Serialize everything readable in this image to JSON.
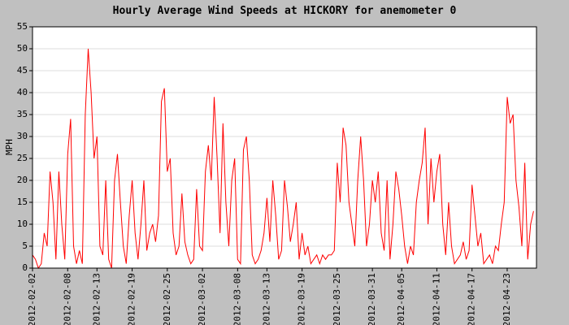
{
  "chart_data": {
    "type": "line",
    "title": "Hourly Average Wind Speeds at HICKORY for anemometer 0",
    "y_label": "MPH",
    "categories": [
      "2012-02-02",
      null,
      null,
      null,
      null,
      null,
      null,
      null,
      null,
      null,
      null,
      null,
      "2012-02-08",
      null,
      null,
      null,
      null,
      null,
      null,
      null,
      null,
      null,
      "2012-02-13",
      null,
      null,
      null,
      null,
      null,
      null,
      null,
      null,
      null,
      null,
      null,
      "2012-02-19",
      null,
      null,
      null,
      null,
      null,
      null,
      null,
      null,
      null,
      null,
      null,
      "2012-02-25",
      null,
      null,
      null,
      null,
      null,
      null,
      null,
      null,
      null,
      null,
      null,
      "2012-03-02",
      null,
      null,
      null,
      null,
      null,
      null,
      null,
      null,
      null,
      null,
      null,
      "2012-03-08",
      null,
      null,
      null,
      null,
      null,
      null,
      null,
      null,
      null,
      "2012-03-13",
      null,
      null,
      null,
      null,
      null,
      null,
      null,
      null,
      null,
      null,
      null,
      "2012-03-19",
      null,
      null,
      null,
      null,
      null,
      null,
      null,
      null,
      null,
      null,
      null,
      "2012-03-25",
      null,
      null,
      null,
      null,
      null,
      null,
      null,
      null,
      null,
      null,
      null,
      "2012-03-31",
      null,
      null,
      null,
      null,
      null,
      null,
      null,
      null,
      null,
      "2012-04-05",
      null,
      null,
      null,
      null,
      null,
      null,
      null,
      null,
      null,
      null,
      null,
      "2012-04-11",
      null,
      null,
      null,
      null,
      null,
      null,
      null,
      null,
      null,
      null,
      null,
      "2012-04-17",
      null,
      null,
      null,
      null,
      null,
      null,
      null,
      null,
      null,
      null,
      null,
      "2012-04-23",
      null,
      null,
      null,
      null,
      null,
      null,
      null,
      null,
      null
    ],
    "series": [
      {
        "color": "#ff0000",
        "values": [
          3,
          2,
          0,
          1,
          8,
          5,
          22,
          15,
          2,
          22,
          10,
          2,
          26,
          34,
          5,
          1,
          4,
          1,
          35,
          50,
          40,
          25,
          30,
          5,
          3,
          20,
          2,
          0,
          20,
          26,
          15,
          5,
          1,
          12,
          20,
          8,
          2,
          10,
          20,
          4,
          8,
          10,
          6,
          12,
          38,
          41,
          22,
          25,
          8,
          3,
          5,
          17,
          6,
          3,
          1,
          2,
          18,
          5,
          4,
          22,
          28,
          20,
          39,
          25,
          8,
          33,
          15,
          5,
          20,
          25,
          2,
          1,
          27,
          30,
          20,
          3,
          1,
          2,
          4,
          8,
          16,
          6,
          20,
          12,
          2,
          4,
          20,
          14,
          6,
          10,
          15,
          2,
          8,
          3,
          5,
          1,
          2,
          3,
          1,
          3,
          2,
          3,
          3,
          4,
          24,
          15,
          32,
          28,
          15,
          10,
          5,
          20,
          30,
          20,
          5,
          10,
          20,
          15,
          22,
          8,
          4,
          20,
          2,
          10,
          22,
          18,
          12,
          5,
          1,
          5,
          3,
          15,
          20,
          24,
          32,
          10,
          25,
          15,
          22,
          26,
          10,
          3,
          15,
          5,
          1,
          2,
          3,
          6,
          2,
          4,
          19,
          12,
          5,
          8,
          1,
          2,
          3,
          1,
          5,
          4,
          10,
          15,
          39,
          33,
          35,
          20,
          14,
          5,
          24,
          2,
          10,
          13
        ]
      }
    ],
    "ylim": [
      0,
      55
    ],
    "yticks": [
      0,
      5,
      10,
      15,
      20,
      25,
      30,
      35,
      40,
      45,
      50,
      55
    ],
    "grid": true
  }
}
